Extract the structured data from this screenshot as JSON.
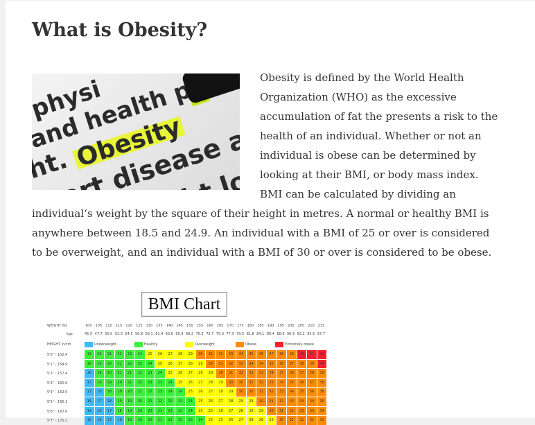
{
  "title": "What is Obesity?",
  "image_words": [
    "physi",
    "and health p",
    "ht.",
    "Obesity",
    "heart disease a",
    "eight lo"
  ],
  "paragraph": "Obesity is defined by the World Health Organization (WHO) as the excessive accumulation of fat the presents a risk to the health of an individual. Whether or not an individual is obese can be determined by looking at their BMI, or body mass index. BMI can be calculated by dividing an individual‘s weight by the square of their height in metres. A normal or healthy BMI is anywhere between 18.5 and 24.9. An individual with a BMI of 25 or over is considered to be overweight, and an individual with a BMI of 30 or over is considered to be obese.",
  "bmi_chart": {
    "title": "BMI Chart",
    "weight_lbs_label": "WEIGHT lbs",
    "weight_kgs_label": "kgs",
    "height_label": "HEIGHT in/cm",
    "weights_lbs": [
      "100",
      "105",
      "110",
      "115",
      "120",
      "125",
      "130",
      "135",
      "140",
      "145",
      "150",
      "155",
      "160",
      "165",
      "170",
      "175",
      "180",
      "185",
      "190",
      "195",
      "200",
      "205",
      "210",
      "215"
    ],
    "weights_kgs": [
      "45.5",
      "47.7",
      "50.0",
      "52.3",
      "54.5",
      "56.8",
      "59.1",
      "61.4",
      "63.6",
      "65.9",
      "68.2",
      "70.5",
      "72.7",
      "75.0",
      "77.3",
      "79.5",
      "81.8",
      "84.1",
      "86.4",
      "88.6",
      "90.9",
      "93.2",
      "95.5",
      "97.7"
    ],
    "legend": [
      {
        "label": "Underweight",
        "color": "#3dbcf5"
      },
      {
        "label": "Healthy",
        "color": "#3cf03c"
      },
      {
        "label": "Overweight",
        "color": "#ffff00"
      },
      {
        "label": "Obese",
        "color": "#ff8c00"
      },
      {
        "label": "Extremely obese",
        "color": "#f5202e"
      }
    ],
    "rows": [
      {
        "label": "5'0\" - 152.4",
        "inches": 60
      },
      {
        "label": "5'1\" - 154.9",
        "inches": 61
      },
      {
        "label": "5'2\" - 157.4",
        "inches": 62
      },
      {
        "label": "5'3\" - 160.0",
        "inches": 63
      },
      {
        "label": "5'4\" - 162.5",
        "inches": 64
      },
      {
        "label": "5'5\" - 165.1",
        "inches": 65
      },
      {
        "label": "5'6\" - 167.6",
        "inches": 66
      },
      {
        "label": "5'7\" - 170.1",
        "inches": 67
      }
    ]
  }
}
